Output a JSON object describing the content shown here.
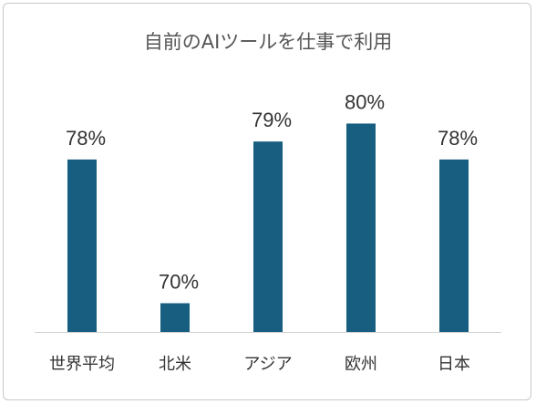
{
  "chart_data": {
    "type": "bar",
    "title": "自前のAIツールを仕事で利用",
    "categories": [
      "世界平均",
      "北米",
      "アジア",
      "欧州",
      "日本"
    ],
    "values": [
      78,
      70,
      79,
      80,
      78
    ],
    "data_labels": [
      "78%",
      "70%",
      "79%",
      "80%",
      "78%"
    ],
    "unit": "%",
    "xlabel": "",
    "ylabel": "",
    "grid": false,
    "legend": "none",
    "bar_color": "#175e80",
    "axis_color": "#d0d0d0"
  }
}
